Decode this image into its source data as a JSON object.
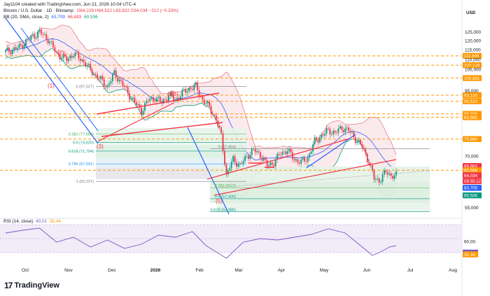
{
  "header": {
    "author_line": "Jay1104 created with TradingView.com, Jun 21, 2026 10:04 UTC-4",
    "symbol": "Bitcoin / U.S. Dollar · 1D · Bitstamp",
    "ohlc": "O64,228  H64,522  L63,822  C64,034  −212 (−0.33%)",
    "bb_label": "BB (20, SMA, close, 2)",
    "bb_values": [
      "63,709",
      "66,883",
      "60,536"
    ],
    "rsi_label": "RSI (14, close)",
    "rsi_values": [
      "40.01",
      "35.44"
    ],
    "currency": "USD"
  },
  "brand": {
    "name": "TradingView",
    "logo": "17"
  },
  "colors": {
    "candle_up": "#089981",
    "candle_down": "#f23645",
    "bb_band": "#f7a7b2",
    "bb_basis": "#2962ff",
    "bb_lower": "#089981",
    "fib_line": "#ff9800",
    "trend": "#f23645",
    "rsi_line": "#7e57c2"
  },
  "chart_data": {
    "type": "candlestick",
    "x_ticks": [
      "Oct",
      "Nov",
      "Dec",
      "2026",
      "Feb",
      "Mar",
      "Apr",
      "May",
      "Jun",
      "Jul",
      "Aug"
    ],
    "y_ticks": [
      "125,000",
      "120,000",
      "115,000",
      "110,000",
      "105,000",
      "95,000",
      "70,000",
      "55,000"
    ],
    "price_levels": [
      {
        "label": "111,895",
        "value": 111895,
        "bg": "#ff9800"
      },
      {
        "label": "107,128",
        "value": 107128,
        "bg": "#ff9800"
      },
      {
        "label": "100,881",
        "value": 100881,
        "bg": "#ff9800"
      },
      {
        "label": "93,130",
        "value": 93130,
        "bg": "#ff9800"
      },
      {
        "label": "90,510",
        "value": 90510,
        "bg": "#ff9800"
      },
      {
        "label": "85,338",
        "value": 85338,
        "bg": "#ff9800"
      },
      {
        "label": "83,985",
        "value": 83985,
        "bg": "#ff9800"
      },
      {
        "label": "75,860",
        "value": 75860,
        "bg": "#ff9800"
      },
      {
        "label": "66,883",
        "value": 66883,
        "bg": "#f23645"
      },
      {
        "label": "65,566",
        "value": 65566,
        "bg": "#ff9800"
      },
      {
        "label": "64,034",
        "value": 64034,
        "bg": "#f23645"
      },
      {
        "label": "09:55:12",
        "value": 62300,
        "bg": "#f23645"
      },
      {
        "label": "63,709",
        "value": 60400,
        "bg": "#2962ff"
      },
      {
        "label": "60,536",
        "value": 58300,
        "bg": "#089981"
      }
    ],
    "fib_left": [
      {
        "label": "0 (97,027)",
        "value": 97027
      },
      {
        "label": "0.382 (77,663)",
        "value": 77663
      },
      {
        "label": "0.5 (74,620)",
        "value": 74620
      },
      {
        "label": "0.618 (71,704)",
        "value": 71704
      },
      {
        "label": "0.786 (67,541)",
        "value": 67541
      },
      {
        "label": "1 (62,237)",
        "value": 62237
      }
    ],
    "fib_right": [
      {
        "label": "0 (72,464)",
        "value": 72464
      },
      {
        "label": "0.382 (60,?)",
        "value": 60400
      },
      {
        "label": "0.5 (57,400)",
        "value": 57400
      },
      {
        "label": "0.618 (53,986)",
        "value": 53986
      }
    ],
    "wave_labels": [
      "(1)",
      "(2)",
      "(4)",
      "(5)",
      "(B)",
      "(3)"
    ],
    "rsi_levels": [
      {
        "label": "60.00",
        "value": 60
      },
      {
        "label": "40.01",
        "value": 40.01
      },
      {
        "label": "35.44",
        "value": 35.44
      }
    ],
    "close_path": [
      [
        0,
        114000
      ],
      [
        8,
        116500
      ],
      [
        15,
        122000
      ],
      [
        20,
        125000
      ],
      [
        25,
        121000
      ],
      [
        30,
        113000
      ],
      [
        36,
        110000
      ],
      [
        40,
        113000
      ],
      [
        46,
        109000
      ],
      [
        50,
        104500
      ],
      [
        56,
        100000
      ],
      [
        60,
        97000
      ],
      [
        64,
        103000
      ],
      [
        68,
        99000
      ],
      [
        72,
        94000
      ],
      [
        76,
        90000
      ],
      [
        80,
        86500
      ],
      [
        84,
        91000
      ],
      [
        88,
        92000
      ],
      [
        92,
        90000
      ],
      [
        96,
        93000
      ],
      [
        100,
        91000
      ],
      [
        104,
        94000
      ],
      [
        108,
        96000
      ],
      [
        112,
        97000
      ],
      [
        116,
        91000
      ],
      [
        120,
        88000
      ],
      [
        124,
        83000
      ],
      [
        127,
        77000
      ],
      [
        130,
        64000
      ],
      [
        134,
        69000
      ],
      [
        138,
        67000
      ],
      [
        142,
        70000
      ],
      [
        146,
        72000
      ],
      [
        150,
        70500
      ],
      [
        154,
        67000
      ],
      [
        158,
        68000
      ],
      [
        162,
        71000
      ],
      [
        166,
        72000
      ],
      [
        170,
        69000
      ],
      [
        174,
        68000
      ],
      [
        178,
        69500
      ],
      [
        182,
        75000
      ],
      [
        186,
        77000
      ],
      [
        190,
        79000
      ],
      [
        194,
        78000
      ],
      [
        198,
        80000
      ],
      [
        202,
        79000
      ],
      [
        206,
        76000
      ],
      [
        210,
        73000
      ],
      [
        214,
        68000
      ],
      [
        217,
        63000
      ],
      [
        220,
        62500
      ],
      [
        224,
        65000
      ],
      [
        227,
        64000
      ],
      [
        230,
        64034
      ]
    ],
    "rsi_path": [
      [
        0,
        58
      ],
      [
        10,
        62
      ],
      [
        20,
        65
      ],
      [
        30,
        45
      ],
      [
        40,
        52
      ],
      [
        50,
        38
      ],
      [
        60,
        48
      ],
      [
        70,
        36
      ],
      [
        80,
        42
      ],
      [
        90,
        55
      ],
      [
        100,
        52
      ],
      [
        110,
        60
      ],
      [
        118,
        40
      ],
      [
        126,
        28
      ],
      [
        130,
        22
      ],
      [
        140,
        45
      ],
      [
        150,
        50
      ],
      [
        160,
        48
      ],
      [
        170,
        52
      ],
      [
        180,
        56
      ],
      [
        190,
        64
      ],
      [
        200,
        58
      ],
      [
        208,
        42
      ],
      [
        216,
        26
      ],
      [
        220,
        30
      ],
      [
        226,
        38
      ],
      [
        230,
        40.01
      ]
    ]
  }
}
